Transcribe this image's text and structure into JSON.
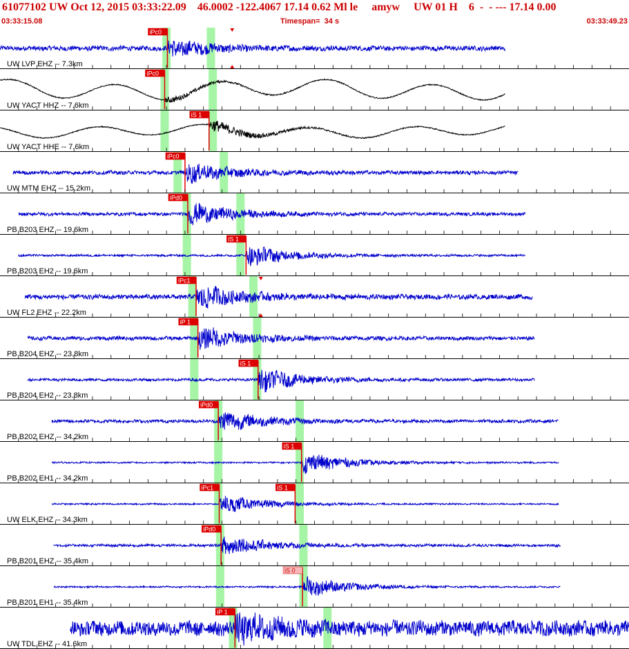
{
  "header": {
    "title": "61077102 UW Oct 12, 2015 03:33:22.09    46.0002 -122.4067 17.14 0.62 Ml le     amyw     UW 01 H    6  -  - --- 17.14 0.00",
    "start_time": "03:33:15.08",
    "timespan": "Timespan=  34 s",
    "end_time": "03:33:49.23"
  },
  "colors": {
    "header_text": "#cc0000",
    "trace_vertical": "#0000cc",
    "trace_broadband": "#000000",
    "pick_flag": "#dd0000",
    "pick_flag_light": "#f6b8b8",
    "pick_window": "#a6f5a6",
    "grid": "#000000"
  },
  "chart_data": {
    "type": "seismogram",
    "x_range_s": [
      0,
      34
    ],
    "tick_interval_s": 1,
    "grid": "vertical seconds ticks + panel separators",
    "traces": [
      {
        "label": "UW LVP EHZ -- 7.3km",
        "color": "blue",
        "start": 0.0,
        "end": 27.3,
        "amp": 0.09,
        "burst": 0.34,
        "style": "hf",
        "picks": [
          {
            "text": "iPc0",
            "t": 9.05
          }
        ],
        "extra_markers": [
          12.55
        ],
        "windows": [
          9.0,
          11.4
        ]
      },
      {
        "label": "UW YACT HHZ -- 7.6km",
        "color": "black",
        "start": 0.0,
        "end": 27.3,
        "amp": 0.08,
        "burst": 0.12,
        "style": "wave",
        "picks": [
          {
            "text": "iPc0",
            "t": 8.9
          }
        ],
        "extra_markers": [],
        "windows": [
          8.9,
          11.5
        ]
      },
      {
        "label": "UW YACT HHE -- 7.6km",
        "color": "black",
        "start": 0.0,
        "end": 27.3,
        "amp": 0.05,
        "burst": 0.26,
        "style": "wave",
        "picks": [
          {
            "text": "iS 1",
            "t": 11.3
          }
        ],
        "extra_markers": [],
        "windows": [
          8.9,
          11.5
        ]
      },
      {
        "label": "UW MTM EHZ -- 15.2km",
        "color": "blue",
        "start": 0.7,
        "end": 28.0,
        "amp": 0.07,
        "burst": 0.38,
        "style": "hf",
        "picks": [
          {
            "text": "iPc0",
            "t": 10.0
          }
        ],
        "extra_markers": [],
        "windows": [
          9.6,
          12.1
        ]
      },
      {
        "label": "PB B203 EHZ -- 19.6km",
        "color": "blue",
        "start": 1.0,
        "end": 28.4,
        "amp": 0.06,
        "burst": 0.42,
        "style": "hf",
        "picks": [
          {
            "text": "iPd0",
            "t": 10.15
          }
        ],
        "extra_markers": [],
        "windows": [
          10.1,
          13.0
        ]
      },
      {
        "label": "PB B203 EH2 -- 19.6km",
        "color": "blue",
        "start": 1.0,
        "end": 28.4,
        "amp": 0.04,
        "burst": 0.42,
        "style": "hf",
        "picks": [
          {
            "text": "iS 1",
            "t": 13.3
          }
        ],
        "extra_markers": [],
        "windows": [
          10.1,
          13.0
        ]
      },
      {
        "label": "UW FL2 EHZ -- 22.2km",
        "color": "blue",
        "start": 1.35,
        "end": 28.8,
        "amp": 0.09,
        "burst": 0.45,
        "style": "hf",
        "picks": [
          {
            "text": "iPc1",
            "t": 10.6
          }
        ],
        "extra_markers": [
          14.1
        ],
        "windows": [
          10.4,
          13.7
        ]
      },
      {
        "label": "PB B204 EHZ -- 23.8km",
        "color": "blue",
        "start": 1.5,
        "end": 28.9,
        "amp": 0.07,
        "burst": 0.45,
        "style": "hf",
        "picks": [
          {
            "text": "iP 1",
            "t": 10.7
          }
        ],
        "extra_markers": [],
        "windows": [
          10.5,
          13.9
        ]
      },
      {
        "label": "PB B204 EH2 -- 23.8km",
        "color": "blue",
        "start": 1.5,
        "end": 28.9,
        "amp": 0.05,
        "burst": 0.45,
        "style": "hf",
        "picks": [
          {
            "text": "iS 1",
            "t": 13.95
          }
        ],
        "extra_markers": [],
        "windows": [
          10.5,
          13.9
        ]
      },
      {
        "label": "PB B202 EHZ -- 34.2km",
        "color": "blue",
        "start": 2.8,
        "end": 30.2,
        "amp": 0.06,
        "burst": 0.4,
        "style": "hf",
        "picks": [
          {
            "text": "iPd0",
            "t": 11.8
          }
        ],
        "extra_markers": [],
        "windows": [
          11.8,
          16.2
        ]
      },
      {
        "label": "PB B202 EH1 -- 34.2km",
        "color": "blue",
        "start": 2.8,
        "end": 30.2,
        "amp": 0.03,
        "burst": 0.42,
        "style": "hf",
        "picks": [
          {
            "text": "iS 1",
            "t": 16.3
          }
        ],
        "extra_markers": [],
        "windows": [
          11.8,
          16.2
        ]
      },
      {
        "label": "UW ELK EHZ -- 34.3km",
        "color": "blue",
        "start": 2.8,
        "end": 30.2,
        "amp": 0.03,
        "burst": 0.36,
        "style": "hf",
        "picks": [
          {
            "text": "iPc1",
            "t": 11.85
          },
          {
            "text": "iS 1",
            "t": 15.95
          }
        ],
        "extra_markers": [],
        "windows": [
          11.8,
          16.2
        ]
      },
      {
        "label": "PB B201 EHZ -- 35.4km",
        "color": "blue",
        "start": 2.9,
        "end": 30.3,
        "amp": 0.05,
        "burst": 0.4,
        "style": "hf",
        "picks": [
          {
            "text": "iPd0",
            "t": 11.95
          }
        ],
        "extra_markers": [],
        "windows": [
          11.9,
          16.4
        ]
      },
      {
        "label": "PB B201 EH1 -- 35.4km",
        "color": "blue",
        "start": 2.9,
        "end": 30.3,
        "amp": 0.03,
        "burst": 0.4,
        "style": "hf",
        "picks": [
          {
            "text": "iS 0",
            "t": 16.35,
            "light": true
          }
        ],
        "extra_markers": [],
        "windows": [
          11.9,
          16.4
        ]
      },
      {
        "label": "UW TDL EHZ -- 41.6km",
        "color": "blue",
        "start": 3.8,
        "end": 34.0,
        "amp": 0.28,
        "burst": 0.45,
        "style": "hf",
        "picks": [
          {
            "text": "iP 1",
            "t": 12.7
          }
        ],
        "extra_markers": [],
        "windows": [
          12.6,
          17.7
        ]
      }
    ]
  }
}
